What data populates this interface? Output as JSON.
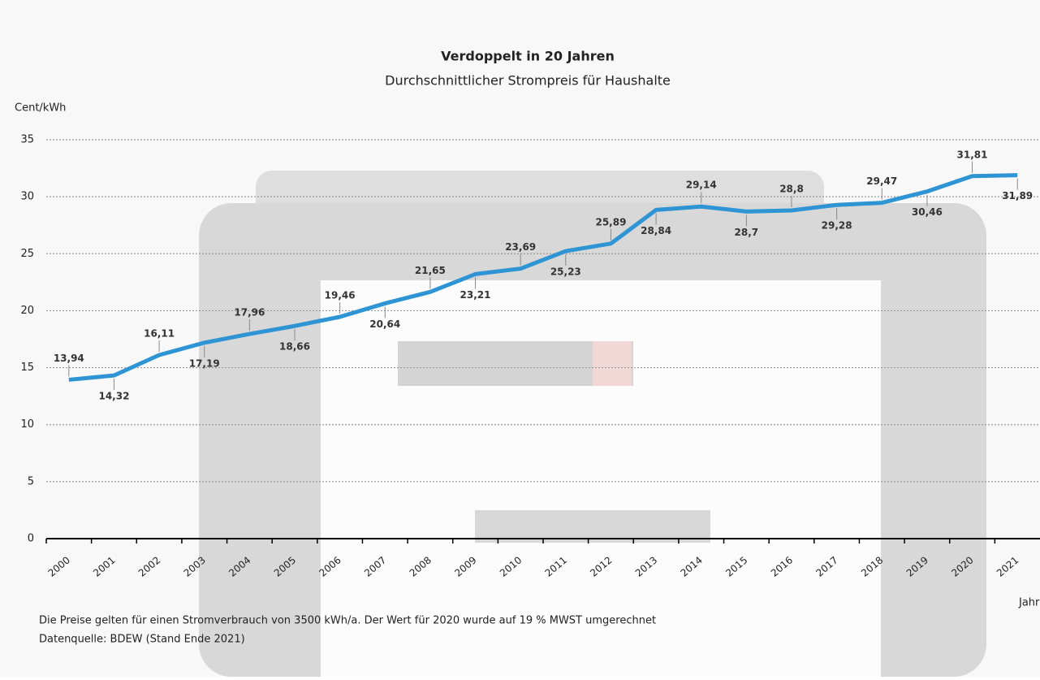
{
  "chart_data": {
    "type": "line",
    "title": "Verdoppelt in 20 Jahren",
    "subtitle": "Durchschnittlicher Strompreis für Haushalte",
    "y_axis_label": "Cent/kWh",
    "x_axis_label": "Jahr",
    "notes": [
      "Die Preise gelten für einen Stromverbrauch von 3500 kWh/a. Der Wert für 2020 wurde auf 19 % MWST umgerechnet",
      "Datenquelle: BDEW (Stand Ende 2021)"
    ],
    "categories": [
      "2000",
      "2001",
      "2002",
      "2003",
      "2004",
      "2005",
      "2006",
      "2007",
      "2008",
      "2009",
      "2010",
      "2011",
      "2012",
      "2013",
      "2014",
      "2015",
      "2016",
      "2017",
      "2018",
      "2019",
      "2020",
      "2021"
    ],
    "values": [
      13.94,
      14.32,
      16.11,
      17.19,
      17.96,
      18.66,
      19.46,
      20.64,
      21.65,
      23.21,
      23.69,
      25.23,
      25.89,
      28.84,
      29.14,
      28.7,
      28.8,
      29.28,
      29.47,
      30.46,
      31.81,
      31.89
    ],
    "value_labels": [
      "13,94",
      "14,32",
      "16,11",
      "17,19",
      "17,96",
      "18,66",
      "19,46",
      "20,64",
      "21,65",
      "23,21",
      "23,69",
      "25,23",
      "25,89",
      "28,84",
      "29,14",
      "28,7",
      "28,8",
      "29,28",
      "29,47",
      "30,46",
      "31,81",
      "31,89"
    ],
    "color": "#2e94d4",
    "ylim": [
      0,
      35
    ],
    "yticks": [
      0,
      5,
      10,
      15,
      20,
      25,
      30,
      35
    ],
    "grid": true
  }
}
